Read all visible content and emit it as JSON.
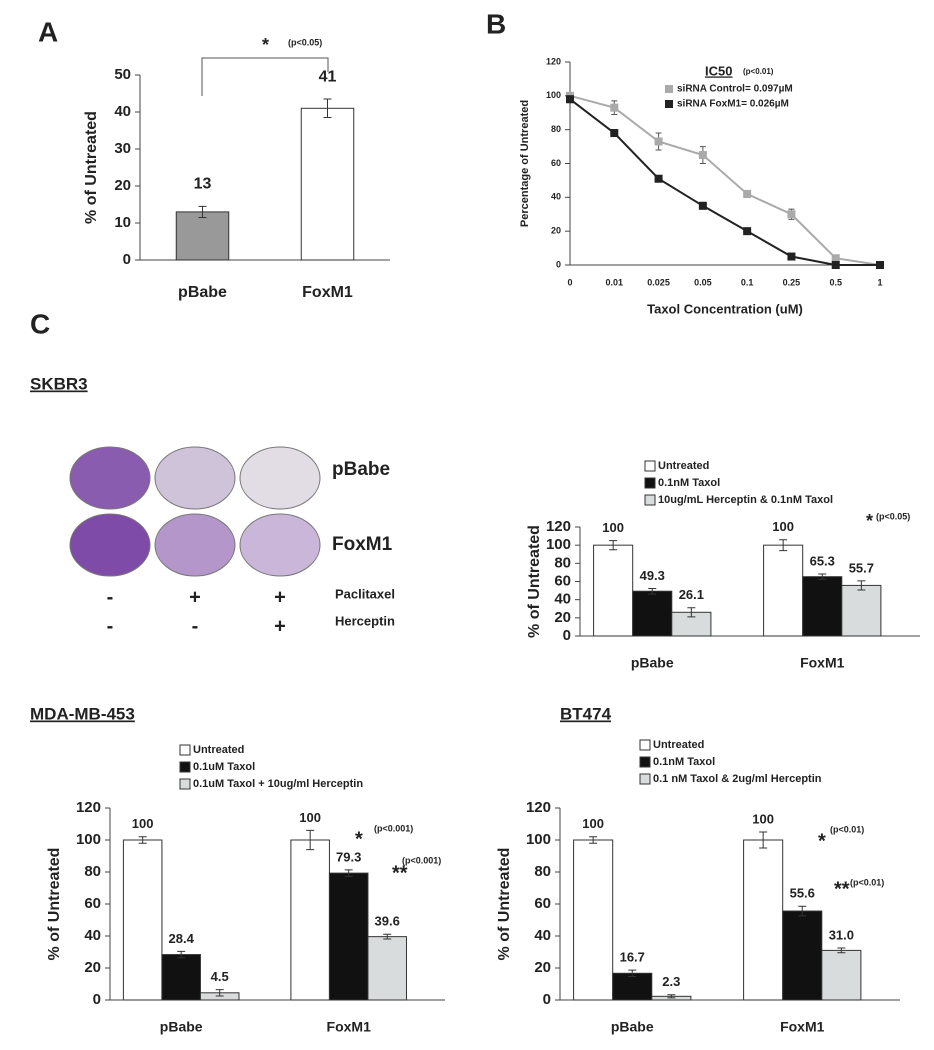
{
  "figure": {
    "panel_labels": [
      "A",
      "B",
      "C"
    ],
    "plates": {
      "rows": [
        "pBabe",
        "FoxM1"
      ],
      "treatments": [
        {
          "name": "Paclitaxel",
          "signs": [
            "-",
            "+",
            "+"
          ]
        },
        {
          "name": "Herceptin",
          "signs": [
            "-",
            "-",
            "+"
          ]
        }
      ]
    }
  },
  "chart_data": [
    {
      "type": "bar",
      "ylabel": "% of Untreated",
      "categories": [
        "pBabe",
        "FoxM1"
      ],
      "values": [
        13,
        41
      ],
      "errors": [
        1.5,
        2.5
      ],
      "colors": [
        "#999999",
        "#ffffff"
      ],
      "ylim": [
        0,
        50
      ],
      "yticks": [
        0,
        10,
        20,
        30,
        40,
        50
      ],
      "annotations": [
        "*",
        "(p<0.05)"
      ]
    },
    {
      "type": "line",
      "ylabel": "Percentage of Untreated",
      "xlabel": "Taxol Concentration (uM)",
      "categories": [
        "0",
        "0.01",
        "0.025",
        "0.05",
        "0.1",
        "0.25",
        "0.5",
        "1"
      ],
      "legend_title": "IC50",
      "legend_note": "(p<0.01)",
      "series": [
        {
          "name": "siRNA Control= 0.097µM",
          "color": "#aaaaaa",
          "values": [
            100,
            93,
            73,
            65,
            42,
            30,
            4,
            0
          ],
          "errors": [
            2,
            4,
            5,
            5,
            2,
            3,
            1,
            0
          ]
        },
        {
          "name": "siRNA FoxM1= 0.026µM",
          "color": "#222222",
          "values": [
            98,
            78,
            51,
            35,
            20,
            5,
            0,
            0
          ],
          "errors": [
            2,
            2,
            1,
            2,
            1,
            1,
            0,
            0
          ]
        }
      ],
      "ylim": [
        0,
        120
      ],
      "yticks": [
        0,
        20,
        40,
        60,
        80,
        100,
        120
      ]
    },
    {
      "type": "bar",
      "title": "SKBR3",
      "ylabel": "% of Untreated",
      "categories": [
        "pBabe",
        "FoxM1"
      ],
      "series": [
        {
          "name": "Untreated",
          "color": "#ffffff",
          "values": [
            100,
            100
          ],
          "errors": [
            5,
            6
          ]
        },
        {
          "name": "0.1nM Taxol",
          "color": "#111111",
          "values": [
            49.3,
            65.3
          ],
          "errors": [
            3,
            3
          ]
        },
        {
          "name": "10ug/mL Herceptin & 0.1nM Taxol",
          "color": "#d9dcdc",
          "values": [
            26.1,
            55.7
          ],
          "errors": [
            5,
            5
          ]
        }
      ],
      "ylim": [
        0,
        120
      ],
      "yticks": [
        0,
        20,
        40,
        60,
        80,
        100,
        120
      ],
      "annotations": [
        "*",
        "(p<0.05)"
      ]
    },
    {
      "type": "bar",
      "title": "MDA-MB-453",
      "ylabel": "% of Untreated",
      "categories": [
        "pBabe",
        "FoxM1"
      ],
      "series": [
        {
          "name": "Untreated",
          "color": "#ffffff",
          "values": [
            100,
            100
          ],
          "errors": [
            2,
            6
          ]
        },
        {
          "name": "0.1uM Taxol",
          "color": "#111111",
          "values": [
            28.4,
            79.3
          ],
          "errors": [
            2,
            2
          ]
        },
        {
          "name": "0.1uM Taxol + 10ug/ml Herceptin",
          "color": "#d9dcdc",
          "values": [
            4.5,
            39.6
          ],
          "errors": [
            2,
            1.5
          ]
        }
      ],
      "ylim": [
        0,
        120
      ],
      "yticks": [
        0,
        20,
        40,
        60,
        80,
        100,
        120
      ],
      "annotations": [
        "*",
        "(p<0.001)",
        "**",
        "(p<0.001)"
      ]
    },
    {
      "type": "bar",
      "title": "BT474",
      "ylabel": "% of Untreated",
      "categories": [
        "pBabe",
        "FoxM1"
      ],
      "series": [
        {
          "name": "Untreated",
          "color": "#ffffff",
          "values": [
            100,
            100
          ],
          "errors": [
            2,
            5
          ]
        },
        {
          "name": "0.1nM Taxol",
          "color": "#111111",
          "values": [
            16.7,
            55.6
          ],
          "errors": [
            2,
            3
          ]
        },
        {
          "name": "0.1 nM Taxol & 2ug/ml Herceptin",
          "color": "#d9dcdc",
          "values": [
            2.3,
            31.0
          ],
          "value_labels": [
            "2.3",
            "31.0"
          ],
          "errors": [
            1,
            1.5
          ]
        }
      ],
      "ylim": [
        0,
        120
      ],
      "yticks": [
        0,
        20,
        40,
        60,
        80,
        100,
        120
      ],
      "annotations": [
        "*",
        "(p<0.01)",
        "**",
        "(p<0.01)"
      ]
    }
  ]
}
